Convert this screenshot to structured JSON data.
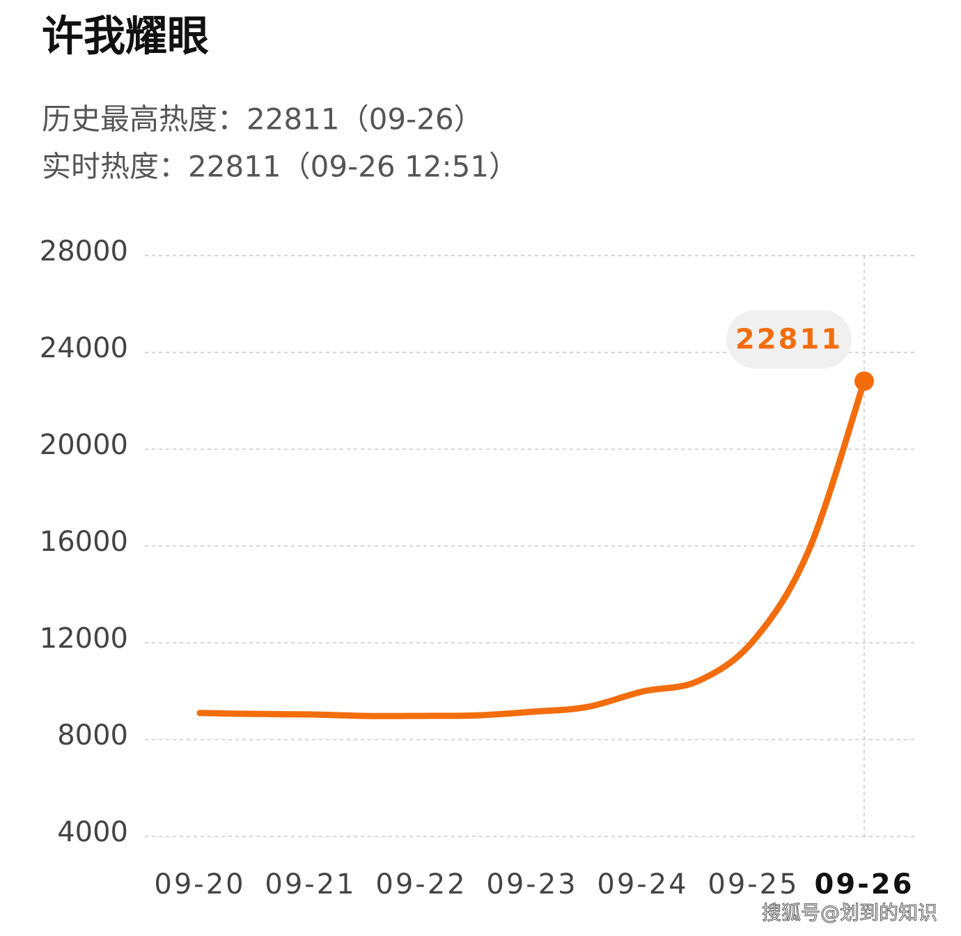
{
  "chart_data": {
    "type": "line",
    "title": "许我耀眼",
    "subtitles": [
      "历史最高热度：22811（09-26）",
      "实时热度：22811（09-26 12:51）"
    ],
    "categories": [
      "09-20",
      null,
      "09-21",
      null,
      "09-22",
      null,
      "09-23",
      null,
      "09-24",
      null,
      "09-25",
      null,
      "09-26"
    ],
    "series": [
      {
        "name": "热度",
        "color": "#f36d0c",
        "values": [
          9100,
          9060,
          9040,
          8980,
          8980,
          9000,
          9150,
          9350,
          9990,
          10420,
          12090,
          15830,
          22811
        ]
      }
    ],
    "ylim": [
      4000,
      28000
    ],
    "yticks": [
      4000,
      8000,
      12000,
      16000,
      20000,
      24000,
      28000
    ],
    "grid": true
  },
  "watermark": "搜狐号@划到的知识"
}
